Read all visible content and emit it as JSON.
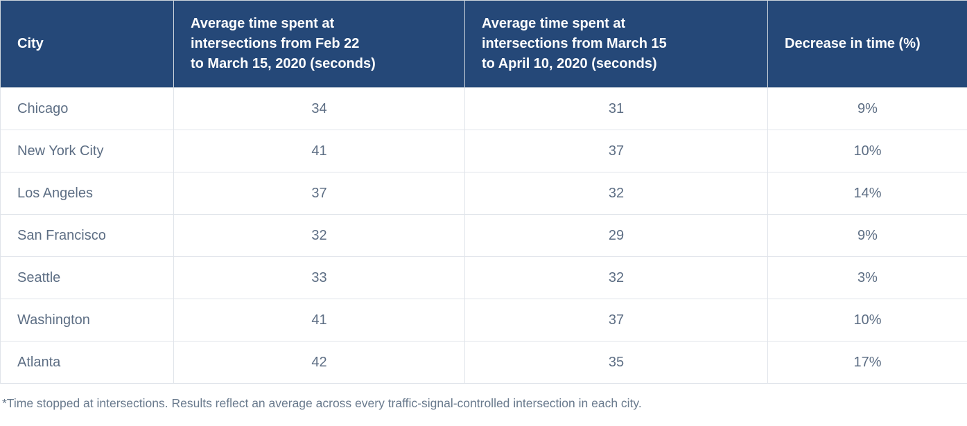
{
  "table": {
    "headers": [
      "City",
      "Average time spent at\nintersections from Feb 22\nto March 15, 2020 (seconds)",
      "Average time spent at\nintersections from March 15\nto April 10, 2020 (seconds)",
      "Decrease in time (%)"
    ],
    "rows": [
      {
        "city": "Chicago",
        "feb22_mar15": "34",
        "mar15_apr10": "31",
        "decrease": "9%"
      },
      {
        "city": "New York City",
        "feb22_mar15": "41",
        "mar15_apr10": "37",
        "decrease": "10%"
      },
      {
        "city": "Los Angeles",
        "feb22_mar15": "37",
        "mar15_apr10": "32",
        "decrease": "14%"
      },
      {
        "city": "San Francisco",
        "feb22_mar15": "32",
        "mar15_apr10": "29",
        "decrease": "9%"
      },
      {
        "city": "Seattle",
        "feb22_mar15": "33",
        "mar15_apr10": "32",
        "decrease": "3%"
      },
      {
        "city": "Washington",
        "feb22_mar15": "41",
        "mar15_apr10": "37",
        "decrease": "10%"
      },
      {
        "city": "Atlanta",
        "feb22_mar15": "42",
        "mar15_apr10": "35",
        "decrease": "17%"
      }
    ]
  },
  "footnote": "*Time stopped at intersections. Results reflect an average across every traffic-signal-controlled intersection in each city.",
  "colors": {
    "header_background": "#254878",
    "header_text": "#ffffff",
    "body_text": "#5d6e84",
    "footnote_text": "#697a8d",
    "row_border": "#e0e4ea",
    "outer_border": "#c2ccd7"
  },
  "chart_data": {
    "type": "table",
    "title": "",
    "columns": [
      "City",
      "Average time spent at intersections from Feb 22 to March 15, 2020 (seconds)",
      "Average time spent at intersections from March 15 to April 10, 2020 (seconds)",
      "Decrease in time (%)"
    ],
    "rows": [
      [
        "Chicago",
        34,
        31,
        "9%"
      ],
      [
        "New York City",
        41,
        37,
        "10%"
      ],
      [
        "Los Angeles",
        37,
        32,
        "14%"
      ],
      [
        "San Francisco",
        32,
        29,
        "9%"
      ],
      [
        "Seattle",
        33,
        32,
        "3%"
      ],
      [
        "Washington",
        41,
        37,
        "10%"
      ],
      [
        "Atlanta",
        42,
        35,
        "17%"
      ]
    ],
    "footnote": "*Time stopped at intersections. Results reflect an average across every traffic-signal-controlled intersection in each city."
  }
}
